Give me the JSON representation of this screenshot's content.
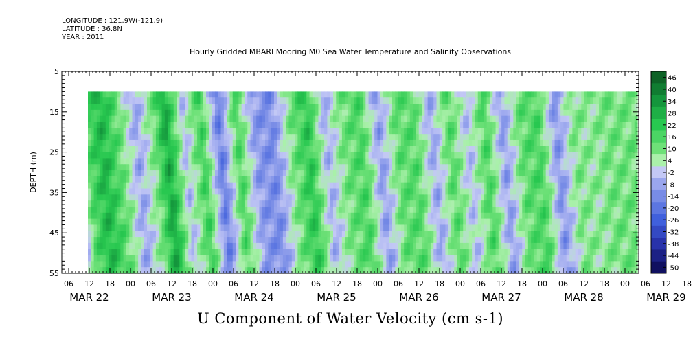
{
  "header": {
    "longitude": "LONGITUDE : 121.9W(-121.9)",
    "latitude": "LATITUDE : 36.8N",
    "year": "YEAR : 2011"
  },
  "chart_data": {
    "type": "heatmap",
    "title": "Hourly Gridded MBARI Mooring M0 Sea Water Temperature and Salinity Observations",
    "xlabel": "U Component of Water Velocity (cm s-1)",
    "ylabel": "DEPTH (m)",
    "ylim": [
      5,
      55
    ],
    "y_ticks": [
      "5",
      "15",
      "25",
      "35",
      "45",
      "55"
    ],
    "x_hour_ticks": [
      "06",
      "12",
      "18",
      "00",
      "06",
      "12",
      "18",
      "00",
      "06",
      "12",
      "18",
      "00",
      "06",
      "12",
      "18",
      "00",
      "06",
      "12",
      "18",
      "00",
      "06",
      "12",
      "18",
      "00",
      "06",
      "12",
      "18",
      "00",
      "06",
      "12",
      "18",
      "00"
    ],
    "x_day_labels": [
      "MAR 22",
      "MAR 23",
      "MAR 24",
      "MAR 25",
      "MAR 26",
      "MAR 27",
      "MAR 28",
      "MAR 29"
    ],
    "data_depth_range": [
      10,
      55
    ],
    "colorbar": {
      "labels": [
        "46",
        "40",
        "34",
        "28",
        "22",
        "16",
        "10",
        "4",
        "-2",
        "-8",
        "-14",
        "-20",
        "-26",
        "-32",
        "-38",
        "-44",
        "-50"
      ],
      "range": [
        -50,
        50
      ]
    },
    "column_profile": [
      {
        "hours_from_start": 0,
        "value": -6
      },
      {
        "hours_from_start": 3,
        "value": 14
      },
      {
        "hours_from_start": 8,
        "value": 26
      },
      {
        "hours_from_start": 14,
        "value": 12
      },
      {
        "hours_from_start": 20,
        "value": -8
      },
      {
        "hours_from_start": 26,
        "value": 10
      },
      {
        "hours_from_start": 30,
        "value": 30
      },
      {
        "hours_from_start": 36,
        "value": -4
      },
      {
        "hours_from_start": 42,
        "value": 18
      },
      {
        "hours_from_start": 48,
        "value": -18
      },
      {
        "hours_from_start": 54,
        "value": 16
      },
      {
        "hours_from_start": 60,
        "value": -10
      },
      {
        "hours_from_start": 66,
        "value": -14
      },
      {
        "hours_from_start": 72,
        "value": 8
      },
      {
        "hours_from_start": 78,
        "value": 22
      },
      {
        "hours_from_start": 84,
        "value": -6
      },
      {
        "hours_from_start": 90,
        "value": 10
      },
      {
        "hours_from_start": 96,
        "value": 16
      },
      {
        "hours_from_start": 102,
        "value": -10
      },
      {
        "hours_from_start": 108,
        "value": 12
      },
      {
        "hours_from_start": 114,
        "value": 14
      },
      {
        "hours_from_start": 120,
        "value": -8
      },
      {
        "hours_from_start": 126,
        "value": 14
      },
      {
        "hours_from_start": 132,
        "value": -4
      },
      {
        "hours_from_start": 138,
        "value": 16
      },
      {
        "hours_from_start": 144,
        "value": -10
      },
      {
        "hours_from_start": 150,
        "value": 12
      },
      {
        "hours_from_start": 156,
        "value": 16
      },
      {
        "hours_from_start": 162,
        "value": -12
      },
      {
        "hours_from_start": 168,
        "value": 8
      },
      {
        "hours_from_start": 174,
        "value": 6
      },
      {
        "hours_from_start": 180,
        "value": 10
      }
    ]
  }
}
